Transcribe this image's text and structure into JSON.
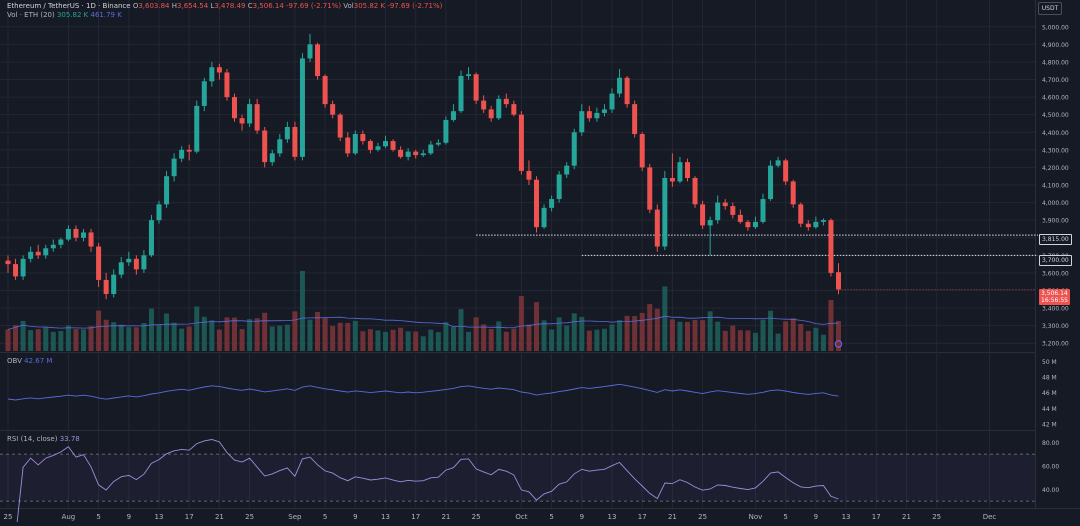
{
  "header": {
    "symbol": "Ethereum / TetherUS · 1D · Binance",
    "o_label": "O",
    "o_val": "3,603.84",
    "h_label": "H",
    "h_val": "3,654.54",
    "l_label": "L",
    "l_val": "3,478.49",
    "c_label": "C",
    "c_val": "3,506.14",
    "change": "-97.69 (-2.71%)",
    "vol_label": "Vol",
    "vol_val": "305.82 K",
    "change2": "-97.69 (-2.71%)",
    "vol_line_label": "Vol · ETH (20)",
    "vol_line_v1": "305.82 K",
    "vol_line_v2": "461.79 K",
    "currency": "USDT"
  },
  "price_tags": {
    "level1": "3,815.00",
    "level2": "3,700.00",
    "last_price": "3,506.14",
    "countdown": "16:56:55"
  },
  "obv": {
    "label": "OBV",
    "value": "42.67 M"
  },
  "rsi": {
    "label": "RSI (14, close)",
    "value": "33.78"
  },
  "colors": {
    "up": "#26a69a",
    "down": "#ef5350",
    "bg": "#161a25",
    "grid": "#232733",
    "line_blue": "#5b6bdc",
    "rsi_line": "#9a8fd8"
  },
  "chart_data": {
    "type": "candlestick",
    "price_axis": {
      "range": [
        3150,
        5050
      ],
      "ticks": [
        3200,
        3300,
        3400,
        3500,
        3600,
        3700,
        3800,
        3900,
        4000,
        4100,
        4200,
        4300,
        4400,
        4500,
        4600,
        4700,
        4800,
        4900,
        5000
      ],
      "tick_labels": [
        "3,200.00",
        "3,300.00",
        "3,400.00",
        "3,500.00",
        "3,600.00",
        "3,700.00",
        "3,800.00",
        "3,900.00",
        "4,000.00",
        "4,100.00",
        "4,200.00",
        "4,300.00",
        "4,400.00",
        "4,500.00",
        "4,600.00",
        "4,700.00",
        "4,800.00",
        "4,900.00",
        "5,000.00"
      ]
    },
    "x_axis": {
      "labels": [
        "25",
        "Aug",
        "5",
        "9",
        "13",
        "17",
        "21",
        "25",
        "Sep",
        "5",
        "9",
        "13",
        "17",
        "21",
        "25",
        "Oct",
        "5",
        "9",
        "13",
        "17",
        "21",
        "25",
        "Nov",
        "5",
        "9",
        "13",
        "17",
        "21",
        "25",
        "Dec"
      ],
      "label_index": [
        0,
        8,
        12,
        16,
        20,
        24,
        28,
        32,
        38,
        42,
        46,
        50,
        54,
        58,
        62,
        68,
        72,
        76,
        80,
        84,
        88,
        92,
        99,
        103,
        107,
        111,
        115,
        119,
        123,
        130
      ]
    },
    "horizontal_levels": [
      {
        "value": 3815,
        "from_index": 62
      },
      {
        "value": 3700,
        "from_index": 76
      }
    ],
    "close": [
      3650,
      3580,
      3680,
      3720,
      3700,
      3740,
      3760,
      3790,
      3850,
      3800,
      3830,
      3750,
      3560,
      3480,
      3590,
      3660,
      3680,
      3620,
      3700,
      3900,
      3990,
      4150,
      4250,
      4300,
      4290,
      4550,
      4690,
      4770,
      4740,
      4600,
      4480,
      4450,
      4560,
      4410,
      4230,
      4280,
      4360,
      4430,
      4260,
      4820,
      4900,
      4720,
      4560,
      4500,
      4370,
      4280,
      4390,
      4350,
      4300,
      4320,
      4350,
      4300,
      4260,
      4290,
      4270,
      4280,
      4330,
      4340,
      4470,
      4520,
      4720,
      4730,
      4580,
      4530,
      4480,
      4590,
      4560,
      4500,
      4180,
      4130,
      3860,
      3970,
      4020,
      4160,
      4210,
      4400,
      4520,
      4480,
      4510,
      4530,
      4620,
      4710,
      4560,
      4390,
      4200,
      3960,
      3750,
      4140,
      4120,
      4230,
      4140,
      3990,
      3870,
      3900,
      4000,
      3980,
      3930,
      3890,
      3860,
      3890,
      4020,
      4210,
      4240,
      4120,
      3990,
      3880,
      3860,
      3890,
      3900,
      3600,
      3506
    ],
    "open": [
      3670,
      3650,
      3580,
      3680,
      3720,
      3700,
      3740,
      3760,
      3790,
      3850,
      3800,
      3830,
      3750,
      3560,
      3480,
      3590,
      3660,
      3680,
      3620,
      3700,
      3900,
      3990,
      4150,
      4250,
      4300,
      4290,
      4550,
      4690,
      4770,
      4740,
      4600,
      4480,
      4450,
      4560,
      4410,
      4230,
      4280,
      4360,
      4430,
      4260,
      4820,
      4900,
      4720,
      4560,
      4500,
      4370,
      4280,
      4390,
      4350,
      4300,
      4320,
      4350,
      4300,
      4260,
      4290,
      4270,
      4280,
      4330,
      4340,
      4470,
      4520,
      4720,
      4730,
      4580,
      4530,
      4480,
      4590,
      4560,
      4500,
      4180,
      4130,
      3860,
      3970,
      4020,
      4160,
      4210,
      4400,
      4520,
      4480,
      4510,
      4530,
      4620,
      4710,
      4560,
      4390,
      4200,
      3960,
      3750,
      4140,
      4120,
      4230,
      4140,
      3990,
      3870,
      3900,
      4000,
      3980,
      3930,
      3890,
      3860,
      3890,
      4020,
      4210,
      4240,
      4120,
      3990,
      3880,
      3860,
      3890,
      3900,
      3603.84
    ],
    "high": [
      3700,
      3680,
      3700,
      3750,
      3760,
      3760,
      3790,
      3800,
      3870,
      3870,
      3850,
      3850,
      3770,
      3600,
      3620,
      3690,
      3720,
      3700,
      3730,
      3930,
      4010,
      4180,
      4280,
      4320,
      4330,
      4580,
      4710,
      4800,
      4790,
      4760,
      4620,
      4500,
      4590,
      4590,
      4430,
      4300,
      4390,
      4460,
      4460,
      4850,
      4960,
      4910,
      4730,
      4580,
      4510,
      4400,
      4410,
      4410,
      4360,
      4340,
      4380,
      4360,
      4320,
      4310,
      4300,
      4300,
      4350,
      4360,
      4490,
      4560,
      4750,
      4770,
      4740,
      4610,
      4550,
      4610,
      4620,
      4580,
      4520,
      4240,
      4150,
      3990,
      4040,
      4180,
      4230,
      4420,
      4560,
      4550,
      4540,
      4560,
      4650,
      4760,
      4720,
      4580,
      4400,
      4220,
      3990,
      4180,
      4280,
      4260,
      4250,
      4150,
      4010,
      3920,
      4040,
      4020,
      4000,
      3960,
      3900,
      3920,
      4050,
      4240,
      4260,
      4250,
      4130,
      4000,
      3900,
      3920,
      3910,
      3910,
      3654.54
    ],
    "low": [
      3600,
      3560,
      3560,
      3660,
      3680,
      3680,
      3720,
      3740,
      3780,
      3780,
      3780,
      3720,
      3520,
      3450,
      3460,
      3570,
      3640,
      3590,
      3600,
      3690,
      3880,
      3970,
      4120,
      4230,
      4240,
      4280,
      4520,
      4660,
      4700,
      4580,
      4460,
      4410,
      4430,
      4390,
      4200,
      4210,
      4260,
      4340,
      4240,
      4240,
      4800,
      4700,
      4540,
      4480,
      4350,
      4260,
      4270,
      4330,
      4280,
      4290,
      4310,
      4290,
      4250,
      4240,
      4250,
      4260,
      4270,
      4320,
      4330,
      4460,
      4510,
      4700,
      4560,
      4510,
      4460,
      4470,
      4540,
      4490,
      4160,
      4100,
      3830,
      3850,
      3950,
      4000,
      4140,
      4190,
      4380,
      4460,
      4460,
      4490,
      4510,
      4600,
      4540,
      4370,
      4180,
      3940,
      3720,
      3730,
      4090,
      4110,
      4120,
      3970,
      3850,
      3700,
      3880,
      3960,
      3910,
      3880,
      3840,
      3850,
      3880,
      4010,
      4200,
      4100,
      3970,
      3860,
      3840,
      3850,
      3870,
      3580,
      3478.49
    ]
  },
  "obv_data": {
    "axis_ticks": [
      "50 M",
      "48 M",
      "46 M",
      "44 M",
      "42 M"
    ],
    "axis_values": [
      50,
      48,
      46,
      44,
      42
    ],
    "range": [
      41.5,
      50.8
    ]
  },
  "rsi_data": {
    "axis_ticks": [
      "80.00",
      "60.00",
      "40.00"
    ],
    "axis_values": [
      80,
      60,
      40
    ],
    "range": [
      25,
      88
    ],
    "band": [
      30,
      70
    ]
  }
}
